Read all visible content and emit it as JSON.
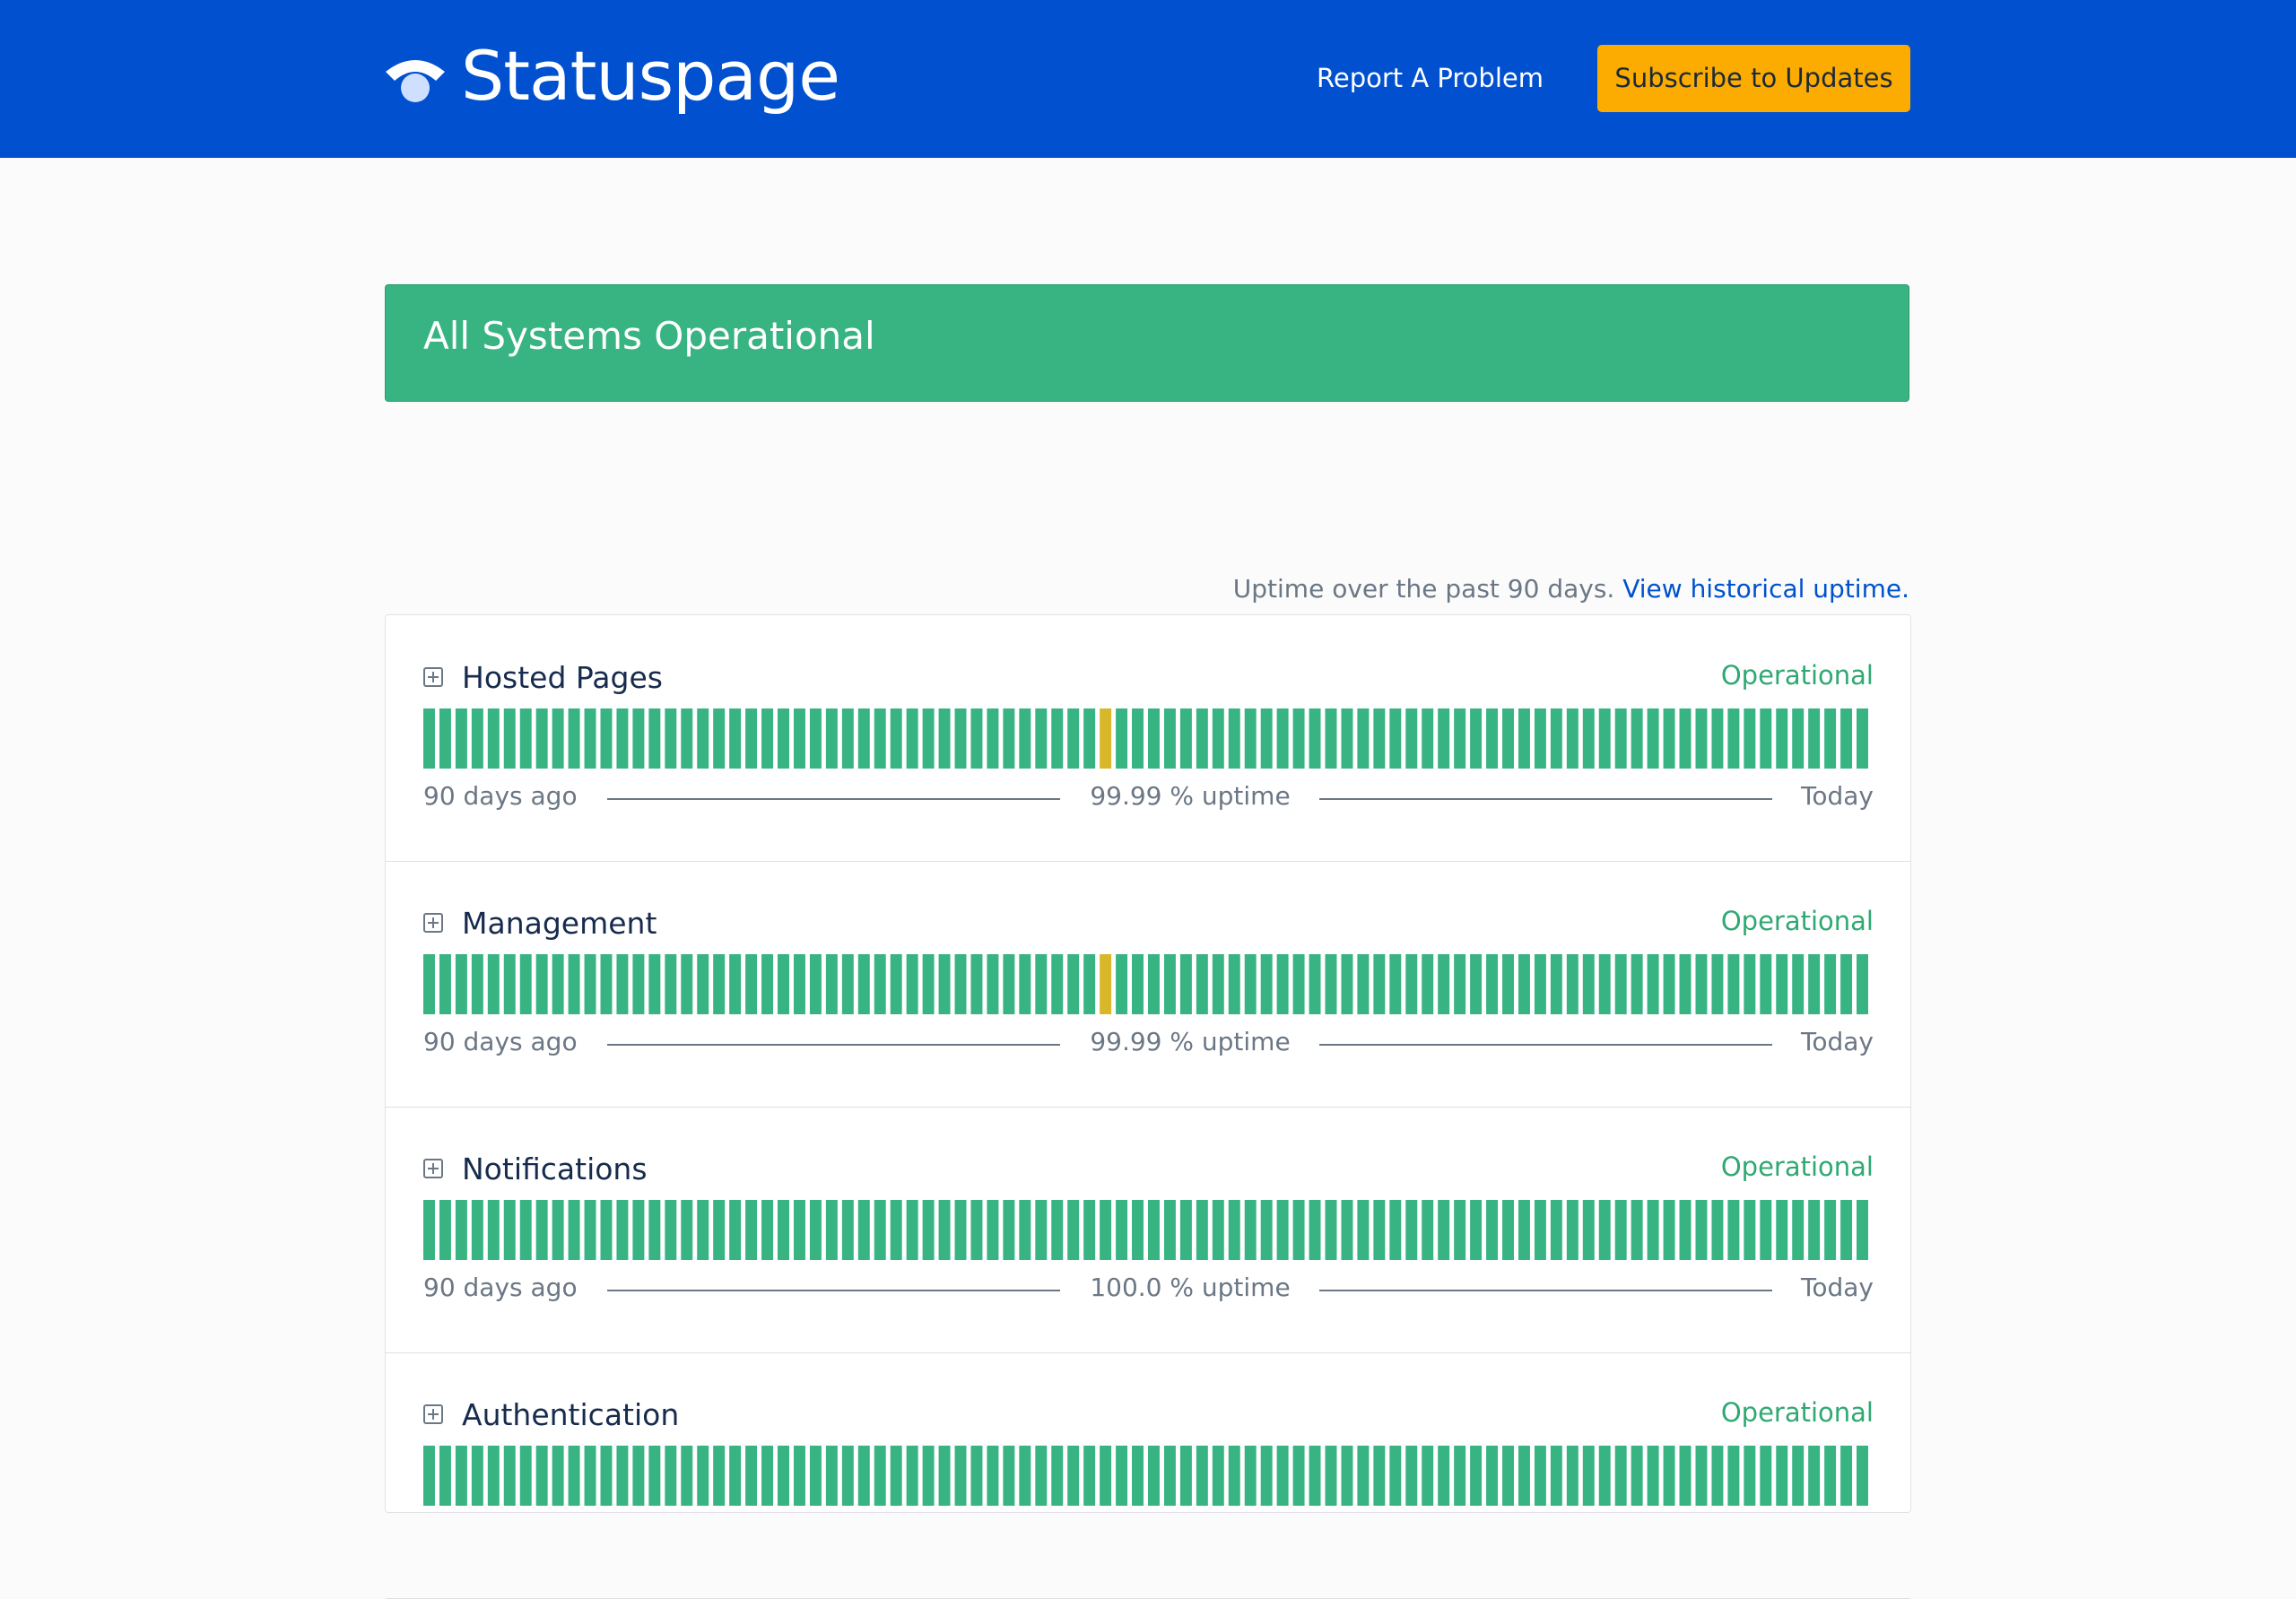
{
  "header": {
    "logo": "Statuspage",
    "report_link": "Report A Problem",
    "subscribe_button": "Subscribe to Updates"
  },
  "banner": {
    "status": "All Systems Operational"
  },
  "uptime_note": {
    "text": "Uptime over the past 90 days.",
    "link": "View historical uptime."
  },
  "components": [
    {
      "name": "Hosted Pages",
      "status": "Operational",
      "uptime": "99.99 % uptime",
      "start": "90 days ago",
      "end": "Today",
      "incident_days": [
        42
      ]
    },
    {
      "name": "Management",
      "status": "Operational",
      "uptime": "99.99 % uptime",
      "start": "90 days ago",
      "end": "Today",
      "incident_days": [
        42
      ]
    },
    {
      "name": "Notifications",
      "status": "Operational",
      "uptime": "100.0 % uptime",
      "start": "90 days ago",
      "end": "Today",
      "incident_days": []
    },
    {
      "name": "Authentication",
      "status": "Operational",
      "uptime": "",
      "start": "",
      "end": "",
      "incident_days": []
    }
  ]
}
